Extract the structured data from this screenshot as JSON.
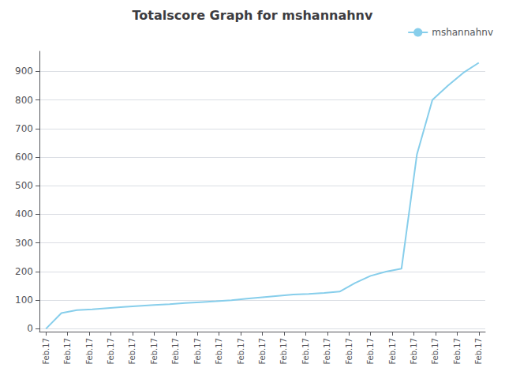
{
  "chart_data": {
    "type": "line",
    "title": "Totalscore Graph for mshannahnv",
    "x": [
      0,
      0.7142857142857143,
      1.4285714285714286,
      2.142857142857143,
      2.857142857142857,
      3.5714285714285716,
      4.285714285714286,
      5,
      5.714285714285714,
      6.428571428571429,
      7.142857142857143,
      7.857142857142857,
      8.571428571428571,
      9.285714285714286,
      10,
      10.714285714285714,
      11.428571428571429,
      12.142857142857142,
      12.857142857142858,
      13.571428571428571,
      14.285714285714286,
      15,
      15.714285714285714,
      16.428571428571427,
      17.142857142857142,
      17.857142857142858,
      18.571428571428573,
      19.285714285714285,
      20
    ],
    "series": [
      {
        "name": "mshannahnv",
        "color": "#87CEEB",
        "values": [
          0,
          55,
          65,
          68,
          72,
          76,
          80,
          83,
          86,
          90,
          93,
          96,
          100,
          105,
          110,
          115,
          120,
          122,
          125,
          130,
          160,
          185,
          200,
          210,
          610,
          800,
          850,
          895,
          930
        ]
      }
    ],
    "xlim": [
      -0.3,
      20.3
    ],
    "xticks": [
      {
        "value": 0,
        "label": "Feb.17"
      },
      {
        "value": 1,
        "label": "Feb.17"
      },
      {
        "value": 2,
        "label": "Feb.17"
      },
      {
        "value": 3,
        "label": "Feb.17"
      },
      {
        "value": 4,
        "label": "Feb.17"
      },
      {
        "value": 5,
        "label": "Feb.17"
      },
      {
        "value": 6,
        "label": "Feb.17"
      },
      {
        "value": 7,
        "label": "Feb.17"
      },
      {
        "value": 8,
        "label": "Feb.17"
      },
      {
        "value": 9,
        "label": "Feb.17"
      },
      {
        "value": 10,
        "label": "Feb.17"
      },
      {
        "value": 11,
        "label": "Feb.17"
      },
      {
        "value": 12,
        "label": "Feb.17"
      },
      {
        "value": 13,
        "label": "Feb.17"
      },
      {
        "value": 14,
        "label": "Feb.17"
      },
      {
        "value": 15,
        "label": "Feb.17"
      },
      {
        "value": 16,
        "label": "Feb.17"
      },
      {
        "value": 17,
        "label": "Feb.17"
      },
      {
        "value": 18,
        "label": "Feb.17"
      },
      {
        "value": 19,
        "label": "Feb.17"
      },
      {
        "value": 20,
        "label": "Feb.17"
      }
    ],
    "ylim": [
      -10,
      970
    ],
    "yticks": [
      0,
      100,
      200,
      300,
      400,
      500,
      600,
      700,
      800,
      900
    ],
    "grid": true,
    "legend": "upper right"
  }
}
